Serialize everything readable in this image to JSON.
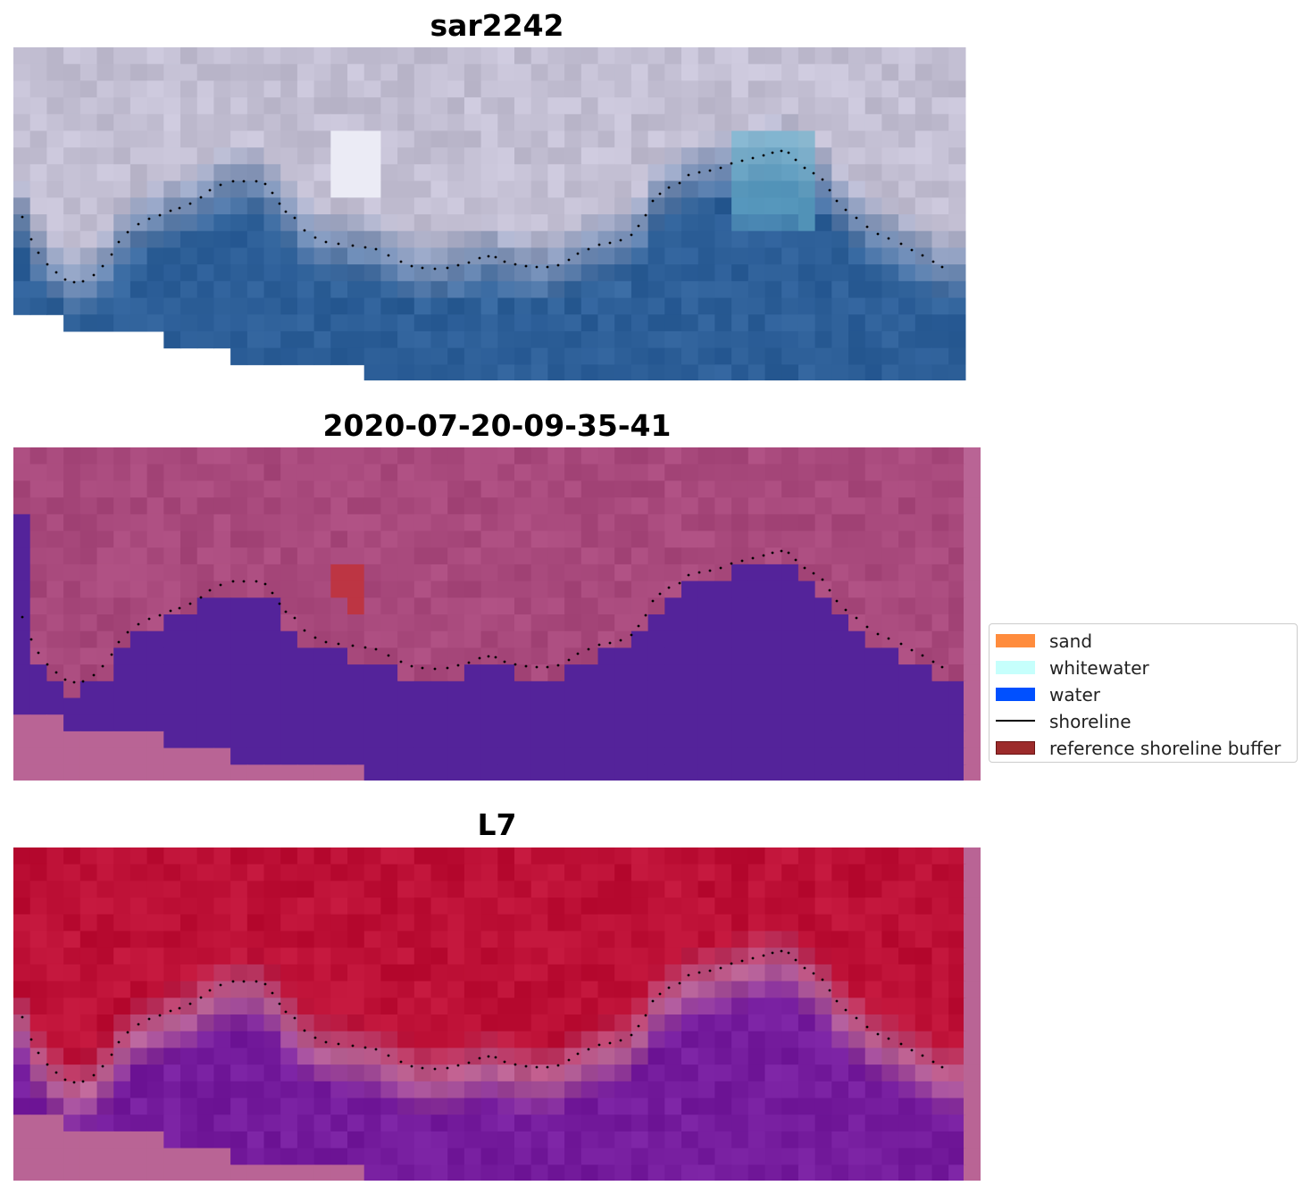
{
  "panels": [
    {
      "title": "sar2242",
      "kind": "rgb"
    },
    {
      "title": "2020-07-20-09-35-41",
      "kind": "classified"
    },
    {
      "title": "L7",
      "kind": "index"
    }
  ],
  "legend": {
    "items": [
      {
        "label": "sand",
        "color": "#ff8c3d",
        "type": "patch"
      },
      {
        "label": "whitewater",
        "color": "#c6fffc",
        "type": "patch"
      },
      {
        "label": "water",
        "color": "#0050ff",
        "type": "patch"
      },
      {
        "label": "shoreline",
        "color": "#000000",
        "type": "line"
      },
      {
        "label": "reference shoreline buffer",
        "color": "#9c2b2b",
        "type": "patch"
      }
    ]
  },
  "colors": {
    "rgb_land": "#c3bfd3",
    "rgb_water": "#2f6199",
    "class_land": "#a8497c",
    "class_water": "#54239a",
    "class_nodata": "#b96495",
    "index_land": "#bd1036",
    "index_water": "#751c9d",
    "index_nodata": "#b96495",
    "buffer": "#bd3543"
  }
}
